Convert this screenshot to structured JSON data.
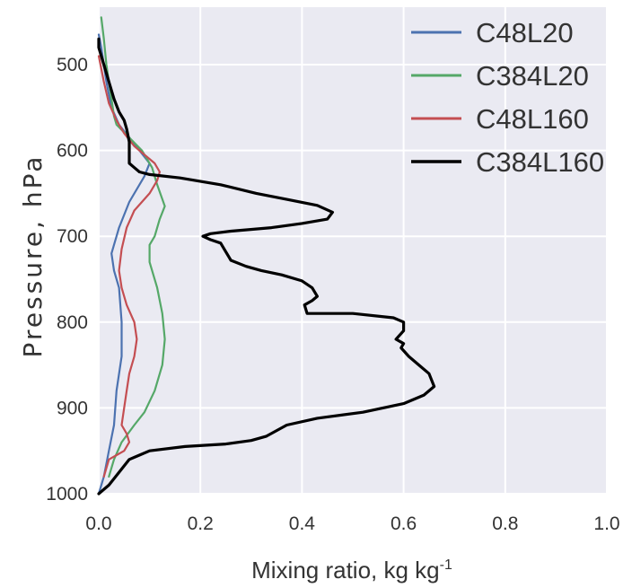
{
  "chart_data": {
    "type": "line",
    "xlabel": "Mixing ratio, kg kg",
    "xlabel_superscript": "-1",
    "ylabel": "Pressure, hPa",
    "xlim": [
      0.0,
      1.0
    ],
    "ylim": [
      1000,
      440
    ],
    "y_inverted": true,
    "grid": true,
    "legend_position": "top-right",
    "xticks": [
      "0.0",
      "0.2",
      "0.4",
      "0.6",
      "0.8",
      "1.0"
    ],
    "yticks": [
      "500",
      "600",
      "700",
      "800",
      "900",
      "1000"
    ],
    "series": [
      {
        "name": "C48L20",
        "color": "#4c72b0",
        "points": [
          [
            0.0,
            1000
          ],
          [
            0.01,
            980
          ],
          [
            0.02,
            950
          ],
          [
            0.03,
            920
          ],
          [
            0.035,
            880
          ],
          [
            0.045,
            840
          ],
          [
            0.045,
            800
          ],
          [
            0.04,
            760
          ],
          [
            0.03,
            740
          ],
          [
            0.025,
            720
          ],
          [
            0.04,
            690
          ],
          [
            0.06,
            660
          ],
          [
            0.09,
            630
          ],
          [
            0.1,
            615
          ],
          [
            0.08,
            600
          ],
          [
            0.06,
            585
          ],
          [
            0.04,
            570
          ],
          [
            0.025,
            550
          ],
          [
            0.015,
            520
          ],
          [
            0.005,
            480
          ],
          [
            0.0,
            465
          ]
        ]
      },
      {
        "name": "C384L20",
        "color": "#55a868",
        "points": [
          [
            0.02,
            980
          ],
          [
            0.03,
            960
          ],
          [
            0.045,
            940
          ],
          [
            0.07,
            920
          ],
          [
            0.09,
            905
          ],
          [
            0.11,
            880
          ],
          [
            0.125,
            850
          ],
          [
            0.13,
            820
          ],
          [
            0.125,
            790
          ],
          [
            0.115,
            760
          ],
          [
            0.1,
            730
          ],
          [
            0.1,
            710
          ],
          [
            0.11,
            700
          ],
          [
            0.12,
            680
          ],
          [
            0.13,
            665
          ],
          [
            0.115,
            640
          ],
          [
            0.105,
            620
          ],
          [
            0.085,
            600
          ],
          [
            0.06,
            585
          ],
          [
            0.035,
            570
          ],
          [
            0.03,
            560
          ],
          [
            0.025,
            540
          ],
          [
            0.02,
            520
          ],
          [
            0.015,
            500
          ],
          [
            0.01,
            470
          ],
          [
            0.005,
            445
          ]
        ]
      },
      {
        "name": "C48L160",
        "color": "#c44e52",
        "points": [
          [
            0.01,
            980
          ],
          [
            0.02,
            960
          ],
          [
            0.035,
            955
          ],
          [
            0.05,
            950
          ],
          [
            0.06,
            940
          ],
          [
            0.055,
            930
          ],
          [
            0.045,
            920
          ],
          [
            0.05,
            900
          ],
          [
            0.055,
            880
          ],
          [
            0.06,
            860
          ],
          [
            0.07,
            840
          ],
          [
            0.075,
            820
          ],
          [
            0.07,
            800
          ],
          [
            0.055,
            780
          ],
          [
            0.045,
            760
          ],
          [
            0.04,
            740
          ],
          [
            0.045,
            715
          ],
          [
            0.055,
            690
          ],
          [
            0.07,
            670
          ],
          [
            0.1,
            650
          ],
          [
            0.115,
            635
          ],
          [
            0.12,
            625
          ],
          [
            0.11,
            615
          ],
          [
            0.09,
            605
          ],
          [
            0.07,
            595
          ],
          [
            0.05,
            580
          ],
          [
            0.035,
            565
          ],
          [
            0.02,
            545
          ],
          [
            0.01,
            520
          ],
          [
            0.0,
            490
          ]
        ]
      },
      {
        "name": "C384L160",
        "color": "#000000",
        "points": [
          [
            0.0,
            1000
          ],
          [
            0.02,
            990
          ],
          [
            0.04,
            975
          ],
          [
            0.06,
            960
          ],
          [
            0.08,
            955
          ],
          [
            0.1,
            950
          ],
          [
            0.17,
            945
          ],
          [
            0.25,
            942
          ],
          [
            0.3,
            938
          ],
          [
            0.33,
            933
          ],
          [
            0.37,
            920
          ],
          [
            0.43,
            912
          ],
          [
            0.52,
            905
          ],
          [
            0.6,
            895
          ],
          [
            0.64,
            885
          ],
          [
            0.66,
            875
          ],
          [
            0.65,
            860
          ],
          [
            0.63,
            850
          ],
          [
            0.61,
            840
          ],
          [
            0.595,
            830
          ],
          [
            0.6,
            825
          ],
          [
            0.585,
            820
          ],
          [
            0.6,
            810
          ],
          [
            0.6,
            800
          ],
          [
            0.58,
            795
          ],
          [
            0.5,
            790
          ],
          [
            0.41,
            790
          ],
          [
            0.405,
            780
          ],
          [
            0.42,
            775
          ],
          [
            0.43,
            770
          ],
          [
            0.42,
            760
          ],
          [
            0.4,
            752
          ],
          [
            0.36,
            745
          ],
          [
            0.32,
            740
          ],
          [
            0.29,
            735
          ],
          [
            0.26,
            728
          ],
          [
            0.25,
            718
          ],
          [
            0.24,
            708
          ],
          [
            0.22,
            704
          ],
          [
            0.205,
            700
          ],
          [
            0.22,
            697
          ],
          [
            0.26,
            694
          ],
          [
            0.34,
            690
          ],
          [
            0.4,
            685
          ],
          [
            0.45,
            680
          ],
          [
            0.46,
            672
          ],
          [
            0.43,
            664
          ],
          [
            0.37,
            657
          ],
          [
            0.31,
            650
          ],
          [
            0.24,
            640
          ],
          [
            0.16,
            632
          ],
          [
            0.1,
            628
          ],
          [
            0.08,
            625
          ],
          [
            0.07,
            620
          ],
          [
            0.06,
            615
          ],
          [
            0.06,
            600
          ],
          [
            0.06,
            590
          ],
          [
            0.055,
            575
          ],
          [
            0.05,
            565
          ],
          [
            0.04,
            555
          ],
          [
            0.03,
            540
          ],
          [
            0.02,
            520
          ],
          [
            0.01,
            500
          ],
          [
            0.0,
            480
          ],
          [
            0.0,
            470
          ]
        ]
      }
    ]
  }
}
